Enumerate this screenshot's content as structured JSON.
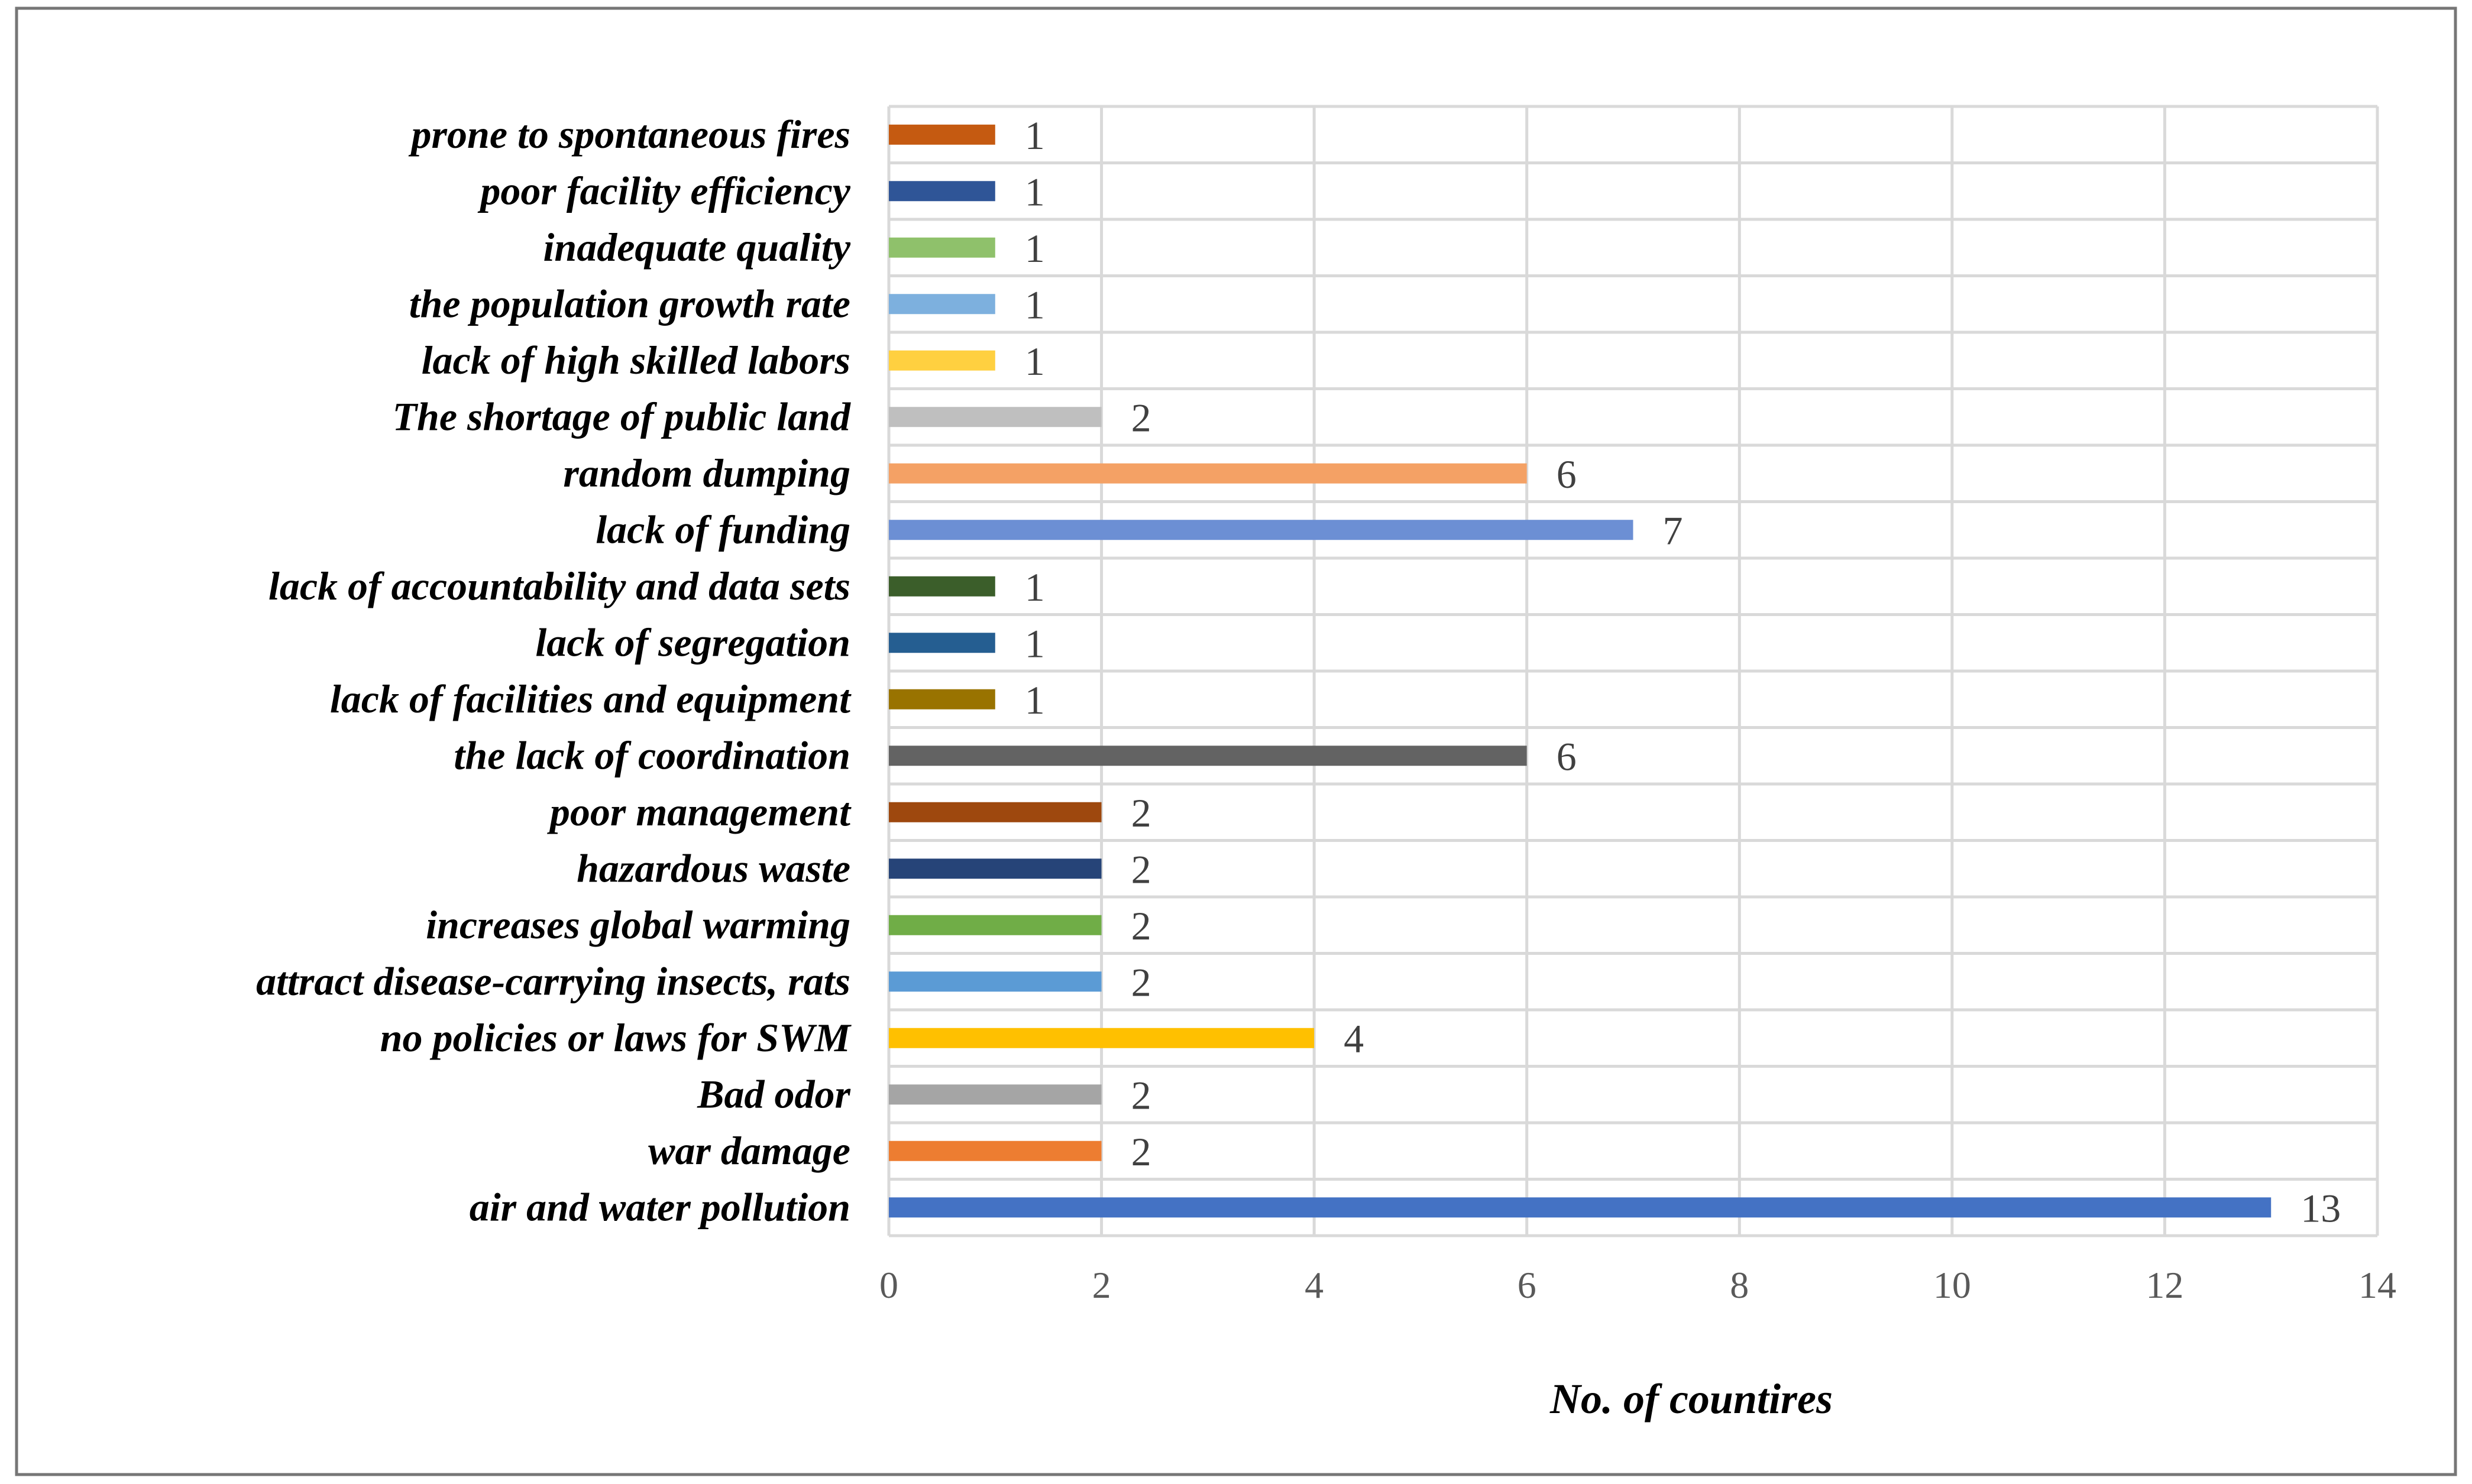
{
  "chart_data": {
    "type": "bar",
    "orientation": "horizontal",
    "title": "",
    "xlabel": "No. of countires",
    "ylabel": "",
    "xlim": [
      0,
      14
    ],
    "xticks": [
      0,
      2,
      4,
      6,
      8,
      10,
      12,
      14
    ],
    "grid": true,
    "legend": "none",
    "data_labels": true,
    "categories": [
      "prone to spontaneous fires",
      "poor facility efficiency",
      "inadequate quality",
      "the population growth rate",
      "lack of high skilled labors",
      "The shortage of public land",
      "random dumping",
      "lack of funding",
      "lack of accountability and data sets",
      "lack of segregation",
      "lack of facilities and equipment",
      "the lack of coordination",
      "poor management",
      "hazardous waste",
      "increases global warming",
      "attract disease-carrying insects,  rats",
      "no policies or laws for SWM",
      "Bad odor",
      "war damage",
      "air and water pollution"
    ],
    "values": [
      1,
      1,
      1,
      1,
      1,
      2,
      6,
      7,
      1,
      1,
      1,
      6,
      2,
      2,
      2,
      2,
      4,
      2,
      2,
      13
    ],
    "colors": [
      "#C55A11",
      "#2F5597",
      "#8FC16B",
      "#7DB0DE",
      "#FFD040",
      "#BFBFBF",
      "#F4A165",
      "#6C8FD4",
      "#3B5E2A",
      "#255E91",
      "#997300",
      "#636363",
      "#9E480E",
      "#264478",
      "#70AD47",
      "#5B9BD5",
      "#FFC000",
      "#A5A5A5",
      "#ED7D31",
      "#4472C4"
    ]
  }
}
